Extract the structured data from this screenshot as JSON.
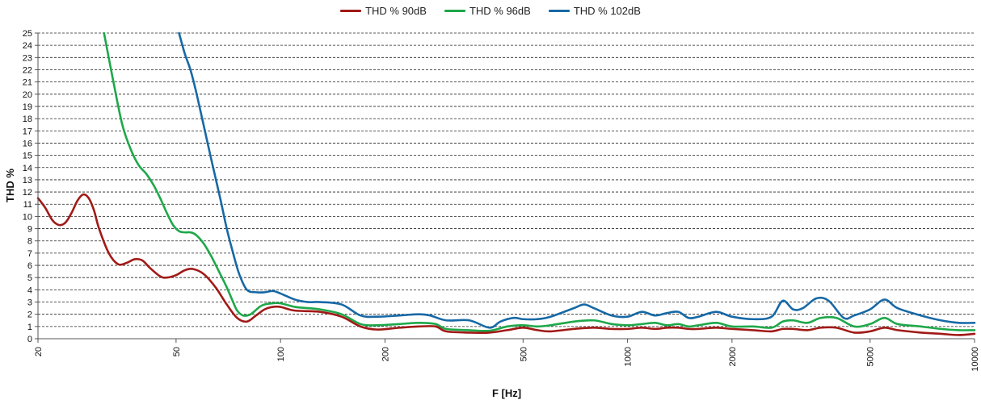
{
  "chart_data": {
    "type": "line",
    "title": "",
    "xlabel": "F [Hz]",
    "ylabel": "THD %",
    "x_scale": "log",
    "xlim": [
      20,
      10000
    ],
    "ylim": [
      0,
      25
    ],
    "x_ticks": [
      20,
      50,
      100,
      200,
      500,
      1000,
      2000,
      5000,
      10000
    ],
    "x_tick_labels": [
      "20",
      "50",
      "100",
      "200",
      "500",
      "1000",
      "2000",
      "5000",
      "10000"
    ],
    "y_ticks": [
      0,
      1,
      2,
      3,
      4,
      5,
      6,
      7,
      8,
      9,
      10,
      11,
      12,
      13,
      14,
      15,
      16,
      17,
      18,
      19,
      20,
      21,
      22,
      23,
      24,
      25
    ],
    "y_tick_labels": [
      "0",
      "1",
      "2",
      "3",
      "4",
      "5",
      "6",
      "7",
      "8",
      "9",
      "10",
      "11",
      "12",
      "13",
      "14",
      "15",
      "16",
      "17",
      "18",
      "19",
      "20",
      "21",
      "22",
      "23",
      "24",
      "25"
    ],
    "grid": "horizontal-dashed",
    "legend_position": "top-center",
    "series": [
      {
        "name": "THD % 90dB",
        "color": "#a01a17",
        "points": [
          [
            20,
            11.5
          ],
          [
            21,
            10.7
          ],
          [
            22,
            9.7
          ],
          [
            23,
            9.3
          ],
          [
            24,
            9.5
          ],
          [
            25,
            10.3
          ],
          [
            26,
            11.3
          ],
          [
            27,
            11.8
          ],
          [
            28,
            11.5
          ],
          [
            29,
            10.5
          ],
          [
            30,
            9.0
          ],
          [
            32,
            7.0
          ],
          [
            34,
            6.1
          ],
          [
            36,
            6.2
          ],
          [
            38,
            6.5
          ],
          [
            40,
            6.4
          ],
          [
            42,
            5.8
          ],
          [
            45,
            5.1
          ],
          [
            47,
            5.0
          ],
          [
            50,
            5.2
          ],
          [
            53,
            5.6
          ],
          [
            56,
            5.7
          ],
          [
            60,
            5.3
          ],
          [
            65,
            4.2
          ],
          [
            70,
            2.8
          ],
          [
            75,
            1.7
          ],
          [
            80,
            1.4
          ],
          [
            85,
            1.9
          ],
          [
            90,
            2.4
          ],
          [
            95,
            2.6
          ],
          [
            100,
            2.6
          ],
          [
            110,
            2.3
          ],
          [
            130,
            2.2
          ],
          [
            150,
            1.8
          ],
          [
            170,
            1.0
          ],
          [
            190,
            0.75
          ],
          [
            220,
            0.9
          ],
          [
            250,
            1.0
          ],
          [
            280,
            1.0
          ],
          [
            300,
            0.6
          ],
          [
            350,
            0.5
          ],
          [
            400,
            0.5
          ],
          [
            450,
            0.7
          ],
          [
            500,
            0.9
          ],
          [
            550,
            0.7
          ],
          [
            600,
            0.6
          ],
          [
            700,
            0.8
          ],
          [
            800,
            0.9
          ],
          [
            900,
            0.8
          ],
          [
            1000,
            0.8
          ],
          [
            1100,
            0.9
          ],
          [
            1200,
            0.8
          ],
          [
            1300,
            0.9
          ],
          [
            1400,
            0.9
          ],
          [
            1500,
            0.8
          ],
          [
            1600,
            0.8
          ],
          [
            1800,
            0.9
          ],
          [
            2000,
            0.8
          ],
          [
            2300,
            0.7
          ],
          [
            2600,
            0.6
          ],
          [
            2800,
            0.8
          ],
          [
            3000,
            0.8
          ],
          [
            3300,
            0.7
          ],
          [
            3600,
            0.9
          ],
          [
            4000,
            0.9
          ],
          [
            4500,
            0.5
          ],
          [
            5000,
            0.6
          ],
          [
            5500,
            0.9
          ],
          [
            6000,
            0.7
          ],
          [
            7000,
            0.5
          ],
          [
            8000,
            0.4
          ],
          [
            9000,
            0.3
          ],
          [
            10000,
            0.4
          ]
        ]
      },
      {
        "name": "THD % 96dB",
        "color": "#1ea84a",
        "points": [
          [
            31,
            25
          ],
          [
            33,
            21
          ],
          [
            35,
            17.5
          ],
          [
            37,
            15.5
          ],
          [
            39,
            14.2
          ],
          [
            41,
            13.5
          ],
          [
            43,
            12.6
          ],
          [
            45,
            11.5
          ],
          [
            47,
            10.3
          ],
          [
            49,
            9.3
          ],
          [
            51,
            8.8
          ],
          [
            53,
            8.7
          ],
          [
            55,
            8.7
          ],
          [
            57,
            8.5
          ],
          [
            60,
            7.8
          ],
          [
            63,
            6.8
          ],
          [
            67,
            5.3
          ],
          [
            70,
            4.2
          ],
          [
            73,
            3.0
          ],
          [
            75,
            2.3
          ],
          [
            78,
            1.9
          ],
          [
            82,
            2.0
          ],
          [
            87,
            2.6
          ],
          [
            90,
            2.8
          ],
          [
            95,
            2.9
          ],
          [
            100,
            2.9
          ],
          [
            110,
            2.6
          ],
          [
            120,
            2.5
          ],
          [
            130,
            2.4
          ],
          [
            150,
            2.0
          ],
          [
            170,
            1.2
          ],
          [
            190,
            1.1
          ],
          [
            220,
            1.2
          ],
          [
            250,
            1.3
          ],
          [
            280,
            1.2
          ],
          [
            300,
            0.8
          ],
          [
            350,
            0.7
          ],
          [
            400,
            0.65
          ],
          [
            450,
            1.0
          ],
          [
            500,
            1.1
          ],
          [
            550,
            1.0
          ],
          [
            600,
            1.1
          ],
          [
            700,
            1.4
          ],
          [
            800,
            1.5
          ],
          [
            900,
            1.2
          ],
          [
            1000,
            1.1
          ],
          [
            1100,
            1.2
          ],
          [
            1200,
            1.3
          ],
          [
            1300,
            1.1
          ],
          [
            1400,
            1.2
          ],
          [
            1500,
            1.0
          ],
          [
            1600,
            1.1
          ],
          [
            1800,
            1.3
          ],
          [
            2000,
            1.0
          ],
          [
            2300,
            1.0
          ],
          [
            2600,
            0.9
          ],
          [
            2800,
            1.4
          ],
          [
            3000,
            1.5
          ],
          [
            3300,
            1.3
          ],
          [
            3600,
            1.7
          ],
          [
            4000,
            1.7
          ],
          [
            4500,
            1.0
          ],
          [
            5000,
            1.2
          ],
          [
            5500,
            1.7
          ],
          [
            6000,
            1.2
          ],
          [
            7000,
            1.0
          ],
          [
            8000,
            0.8
          ],
          [
            9000,
            0.7
          ],
          [
            10000,
            0.7
          ]
        ]
      },
      {
        "name": "THD % 102dB",
        "color": "#1769a6",
        "points": [
          [
            51,
            25
          ],
          [
            53,
            23.3
          ],
          [
            55,
            22
          ],
          [
            57,
            20.3
          ],
          [
            60,
            17.5
          ],
          [
            63,
            14.8
          ],
          [
            67,
            11.5
          ],
          [
            70,
            9.0
          ],
          [
            73,
            7.0
          ],
          [
            76,
            5.3
          ],
          [
            80,
            4.0
          ],
          [
            85,
            3.8
          ],
          [
            90,
            3.8
          ],
          [
            95,
            3.9
          ],
          [
            100,
            3.7
          ],
          [
            110,
            3.2
          ],
          [
            120,
            3.0
          ],
          [
            130,
            3.0
          ],
          [
            150,
            2.8
          ],
          [
            170,
            1.9
          ],
          [
            190,
            1.8
          ],
          [
            220,
            1.9
          ],
          [
            250,
            2.0
          ],
          [
            270,
            1.9
          ],
          [
            300,
            1.5
          ],
          [
            350,
            1.5
          ],
          [
            400,
            0.9
          ],
          [
            430,
            1.4
          ],
          [
            470,
            1.7
          ],
          [
            500,
            1.6
          ],
          [
            550,
            1.6
          ],
          [
            600,
            1.8
          ],
          [
            700,
            2.5
          ],
          [
            750,
            2.8
          ],
          [
            800,
            2.5
          ],
          [
            900,
            1.9
          ],
          [
            1000,
            1.8
          ],
          [
            1100,
            2.2
          ],
          [
            1200,
            1.9
          ],
          [
            1300,
            2.1
          ],
          [
            1400,
            2.2
          ],
          [
            1500,
            1.7
          ],
          [
            1600,
            1.8
          ],
          [
            1800,
            2.2
          ],
          [
            2000,
            1.8
          ],
          [
            2300,
            1.6
          ],
          [
            2600,
            1.8
          ],
          [
            2800,
            3.1
          ],
          [
            3000,
            2.4
          ],
          [
            3200,
            2.5
          ],
          [
            3500,
            3.3
          ],
          [
            3800,
            3.1
          ],
          [
            4200,
            1.7
          ],
          [
            4500,
            1.9
          ],
          [
            5000,
            2.4
          ],
          [
            5500,
            3.2
          ],
          [
            6000,
            2.5
          ],
          [
            7000,
            1.9
          ],
          [
            8000,
            1.5
          ],
          [
            9000,
            1.3
          ],
          [
            10000,
            1.3
          ]
        ]
      }
    ]
  }
}
